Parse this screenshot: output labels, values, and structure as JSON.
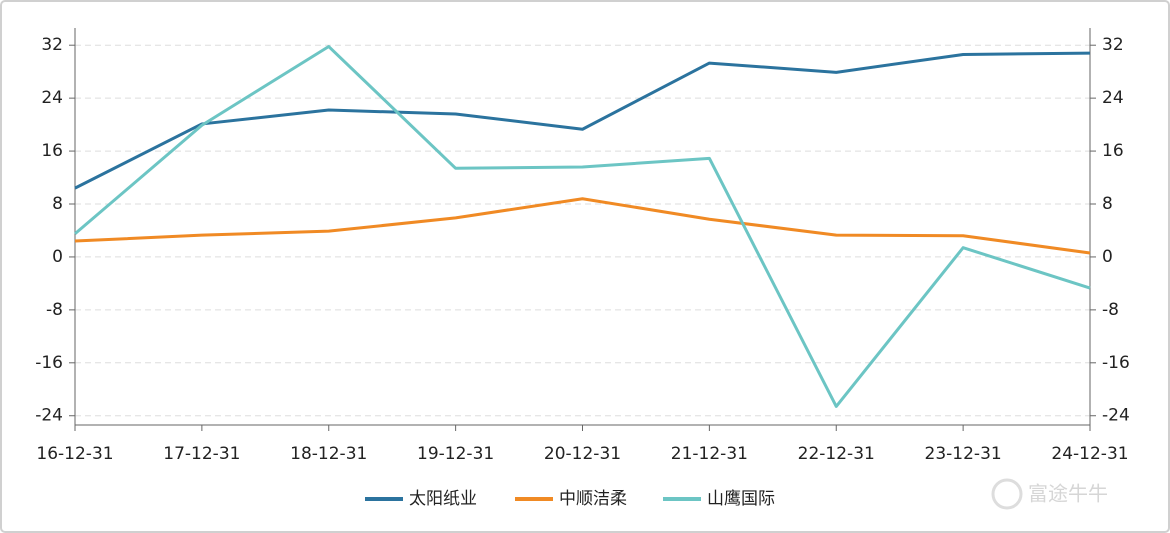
{
  "chart_data": {
    "type": "line",
    "categories": [
      "16-12-31",
      "17-12-31",
      "18-12-31",
      "19-12-31",
      "20-12-31",
      "21-12-31",
      "22-12-31",
      "23-12-31",
      "24-12-31"
    ],
    "series": [
      {
        "name": "太阳纸业",
        "color": "#2b739e",
        "values": [
          10.4,
          20.1,
          22.2,
          21.6,
          19.3,
          29.3,
          27.9,
          30.6,
          30.8
        ]
      },
      {
        "name": "中顺洁柔",
        "color": "#f08a24",
        "values": [
          2.4,
          3.3,
          3.9,
          5.9,
          8.8,
          5.7,
          3.3,
          3.2,
          0.6
        ]
      },
      {
        "name": "山鹰国际",
        "color": "#6cc5c4",
        "values": [
          3.5,
          19.9,
          31.8,
          13.4,
          13.6,
          14.9,
          -22.6,
          1.4,
          -4.7
        ]
      }
    ],
    "ylim": [
      -25.4,
      34.6
    ],
    "yticks": [
      -24,
      -16,
      -8,
      0,
      8,
      16,
      24,
      32
    ],
    "y2lim": [
      -25.4,
      34.6
    ],
    "y2ticks": [
      -24,
      -16,
      -8,
      0,
      8,
      16,
      24,
      32
    ],
    "grid": true,
    "legend": "bottom",
    "watermark": "富途牛牛"
  }
}
